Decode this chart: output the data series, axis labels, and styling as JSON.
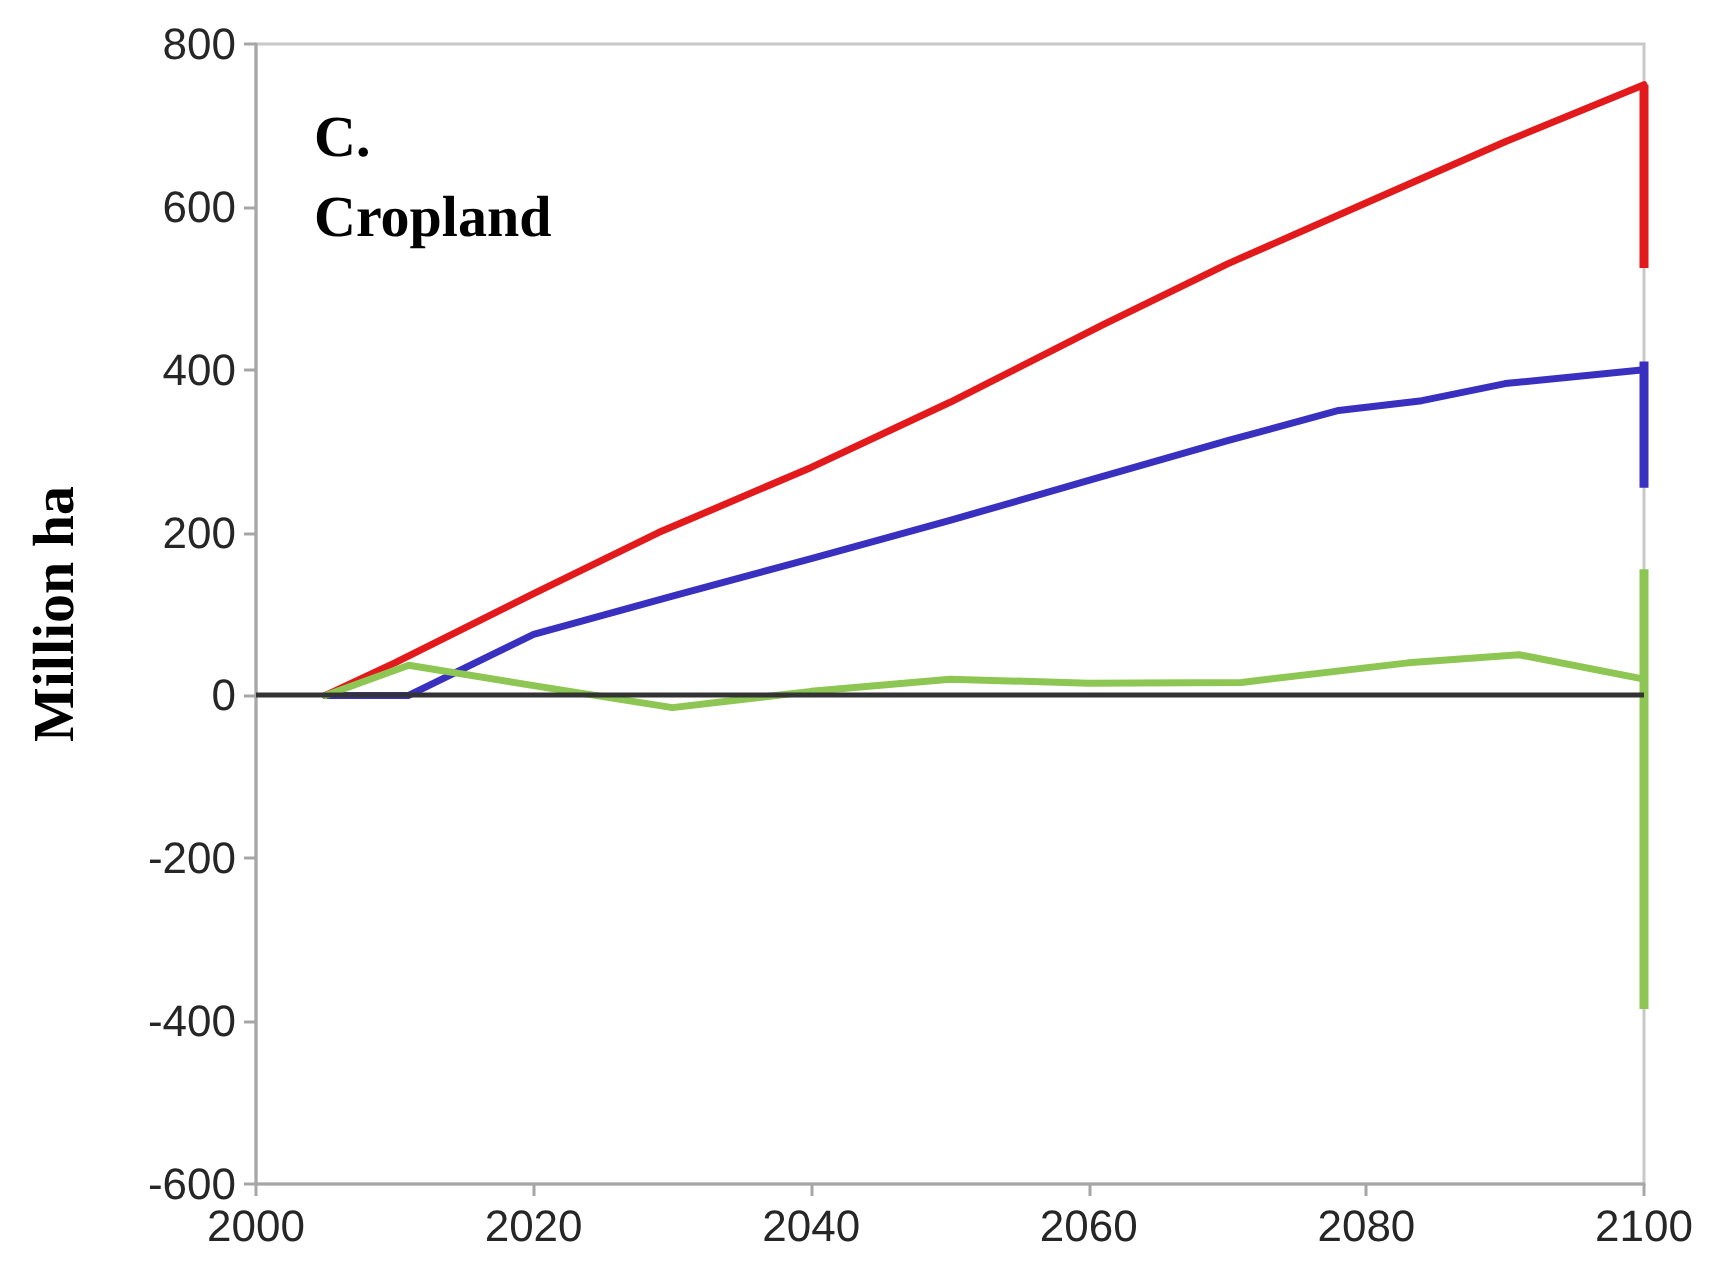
{
  "chart_data": {
    "type": "line",
    "title": "C. Cropland",
    "ylabel": "Million ha",
    "xlim": [
      2000,
      2100
    ],
    "xticks": [
      2000,
      2020,
      2040,
      2060,
      2080,
      2100
    ],
    "ylim": [
      -600,
      800
    ],
    "yticks": [
      -600,
      -400,
      -200,
      0,
      200,
      400,
      600,
      800
    ],
    "grid": false,
    "marker": "none",
    "line_style": "solid",
    "ref_lines": [
      {
        "axis": "y",
        "value": 0,
        "color": "#333333"
      }
    ],
    "series": [
      {
        "color": "#e31a1c",
        "x": [
          2005,
          2010,
          2020,
          2029,
          2040,
          2050,
          2061,
          2070,
          2080,
          2090,
          2100
        ],
        "values": [
          0,
          40,
          125,
          200,
          280,
          360,
          455,
          530,
          605,
          680,
          750
        ],
        "errors": [
          null,
          null,
          null,
          null,
          null,
          null,
          null,
          null,
          null,
          null,
          [
            525,
            750
          ]
        ]
      },
      {
        "color": "#3a30c0",
        "x": [
          2005,
          2011,
          2020,
          2030,
          2040,
          2050,
          2060,
          2070,
          2078,
          2084,
          2090,
          2100
        ],
        "values": [
          0,
          0,
          75,
          122,
          168,
          215,
          264,
          313,
          350,
          362,
          383,
          400
        ],
        "errors": [
          null,
          null,
          null,
          null,
          null,
          null,
          null,
          null,
          null,
          null,
          null,
          [
            255,
            410
          ]
        ]
      },
      {
        "color": "#8dc653",
        "x": [
          2005,
          2011,
          2020,
          2030,
          2040,
          2050,
          2060,
          2071,
          2083,
          2091,
          2100
        ],
        "values": [
          0,
          37,
          12,
          -15,
          5,
          20,
          15,
          16,
          40,
          50,
          20
        ],
        "errors": [
          null,
          null,
          null,
          null,
          null,
          null,
          null,
          null,
          null,
          null,
          [
            -385,
            155
          ]
        ]
      }
    ]
  }
}
